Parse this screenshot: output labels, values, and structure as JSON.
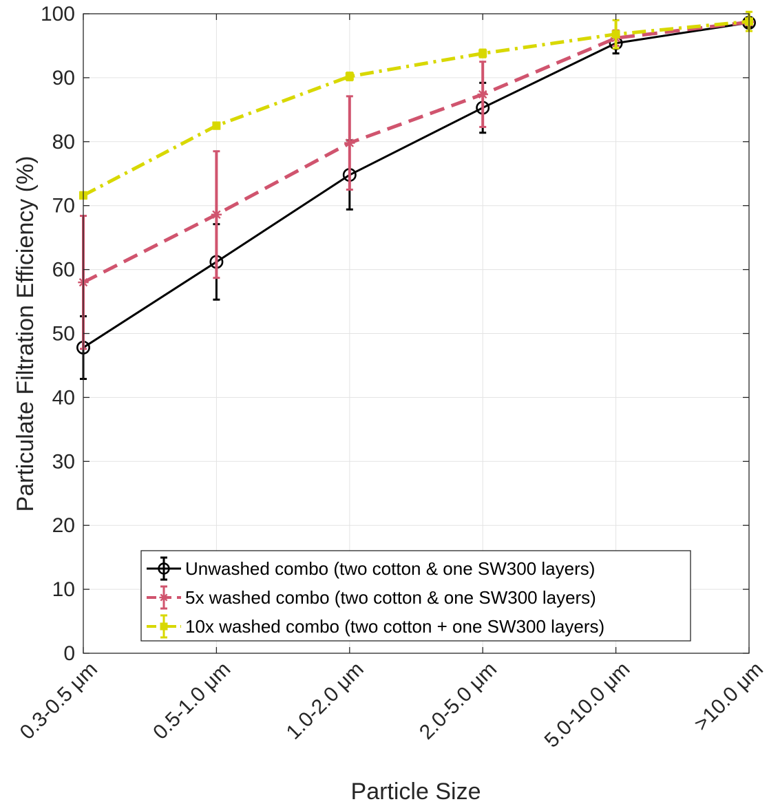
{
  "chart_data": {
    "type": "line",
    "xlabel": "Particle Size",
    "ylabel": "Particulate Filtration Efficiency (%)",
    "ylim": [
      0,
      100
    ],
    "yticks": [
      0,
      10,
      20,
      30,
      40,
      50,
      60,
      70,
      80,
      90,
      100
    ],
    "categories": [
      "0.3-0.5 μm",
      "0.5-1.0 μm",
      "1.0-2.0 μm",
      "2.0-5.0 μm",
      "5.0-10.0 μm",
      ">10.0 μm"
    ],
    "grid": true,
    "legend_position": "bottom-right",
    "series": [
      {
        "name": "Unwashed combo (two cotton & one SW300 layers)",
        "color": "#000000",
        "line_style": "solid",
        "marker": "circle",
        "values": [
          47.8,
          61.2,
          74.8,
          85.3,
          95.4,
          98.6
        ],
        "error": [
          4.9,
          5.9,
          5.4,
          3.9,
          1.6,
          0.6
        ]
      },
      {
        "name": "5x washed combo (two cotton & one SW300 layers)",
        "color": "#d0546e",
        "line_style": "dashed",
        "marker": "star",
        "values": [
          58.0,
          68.6,
          79.8,
          87.4,
          96.2,
          98.7
        ],
        "error": [
          10.4,
          9.9,
          7.3,
          5.1,
          1.2,
          0.5
        ]
      },
      {
        "name": "10x washed combo (two cotton + one SW300 layers)",
        "color": "#d8d800",
        "line_style": "dashdot",
        "marker": "square",
        "values": [
          71.6,
          82.5,
          90.2,
          93.8,
          96.8,
          98.8
        ],
        "error": [
          0.5,
          0.5,
          0.6,
          0.6,
          2.2,
          1.5
        ]
      }
    ]
  }
}
